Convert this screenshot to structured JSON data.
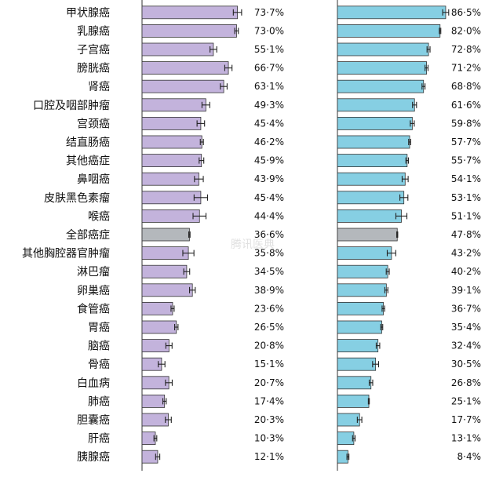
{
  "chart_data": {
    "type": "bar",
    "orientation": "horizontal",
    "categories": [
      "甲状腺癌",
      "乳腺癌",
      "子宫癌",
      "膀胱癌",
      "肾癌",
      "口腔及咽部肿瘤",
      "宫颈癌",
      "结直肠癌",
      "其他癌症",
      "鼻咽癌",
      "皮肤黑色素瘤",
      "喉癌",
      "全部癌症",
      "其他胸腔器官肿瘤",
      "淋巴瘤",
      "卵巢癌",
      "食管癌",
      "胃癌",
      "脑癌",
      "骨癌",
      "白血病",
      "肺癌",
      "胆囊癌",
      "肝癌",
      "胰腺癌"
    ],
    "series": [
      {
        "values": [
          73.7,
          73.0,
          55.1,
          66.7,
          63.1,
          49.3,
          45.4,
          46.2,
          45.9,
          43.9,
          45.4,
          44.4,
          36.6,
          35.8,
          34.5,
          38.9,
          23.6,
          26.5,
          20.8,
          15.1,
          20.7,
          17.4,
          20.3,
          10.3,
          12.1
        ],
        "labels": [
          "73·7%",
          "73·0%",
          "55·1%",
          "66·7%",
          "63·1%",
          "49·3%",
          "45·4%",
          "46·2%",
          "45·9%",
          "43·9%",
          "45·4%",
          "44·4%",
          "36·6%",
          "35·8%",
          "34·5%",
          "38·9%",
          "23·6%",
          "26·5%",
          "20·8%",
          "15·1%",
          "20·7%",
          "17·4%",
          "20·3%",
          "10·3%",
          "12·1%"
        ],
        "errors": [
          3.2,
          1.4,
          2.6,
          2.8,
          2.6,
          3.0,
          2.9,
          1.2,
          1.8,
          3.4,
          5.2,
          5.0,
          0.5,
          4.3,
          2.3,
          2.2,
          1.2,
          1.3,
          2.4,
          2.6,
          2.6,
          1.3,
          2.3,
          1.1,
          1.6
        ],
        "color": "#c3b3dc",
        "xlim": [
          0,
          100
        ]
      },
      {
        "values": [
          86.5,
          82.0,
          72.8,
          71.2,
          68.8,
          61.6,
          59.8,
          57.7,
          55.7,
          54.1,
          53.1,
          51.1,
          47.8,
          43.2,
          40.2,
          39.1,
          36.7,
          35.4,
          32.4,
          30.5,
          26.8,
          25.1,
          17.7,
          13.1,
          8.4
        ],
        "labels": [
          "86·5%",
          "82·0%",
          "72·8%",
          "71·2%",
          "68·8%",
          "61·6%",
          "59·8%",
          "57·7%",
          "55·7%",
          "54·1%",
          "53·1%",
          "51·1%",
          "47·8%",
          "43·2%",
          "40·2%",
          "39·1%",
          "36·7%",
          "35·4%",
          "32·4%",
          "30·5%",
          "26·8%",
          "25·1%",
          "17·7%",
          "13·1%",
          "8·4%"
        ],
        "errors": [
          2.4,
          0.6,
          1.2,
          1.2,
          1.2,
          1.6,
          1.6,
          0.8,
          1.0,
          2.4,
          3.2,
          4.4,
          0.4,
          3.4,
          1.2,
          1.2,
          1.0,
          0.8,
          1.4,
          2.4,
          1.4,
          0.4,
          1.8,
          1.0,
          0.8
        ],
        "color": "#86cfe3",
        "xlim": [
          0,
          100
        ]
      }
    ],
    "highlight_category": "全部癌症",
    "highlight_color": "#b4b8bc",
    "title": "",
    "xlabel": "",
    "ylabel": "",
    "grid": false
  },
  "watermark": "腾讯医典"
}
